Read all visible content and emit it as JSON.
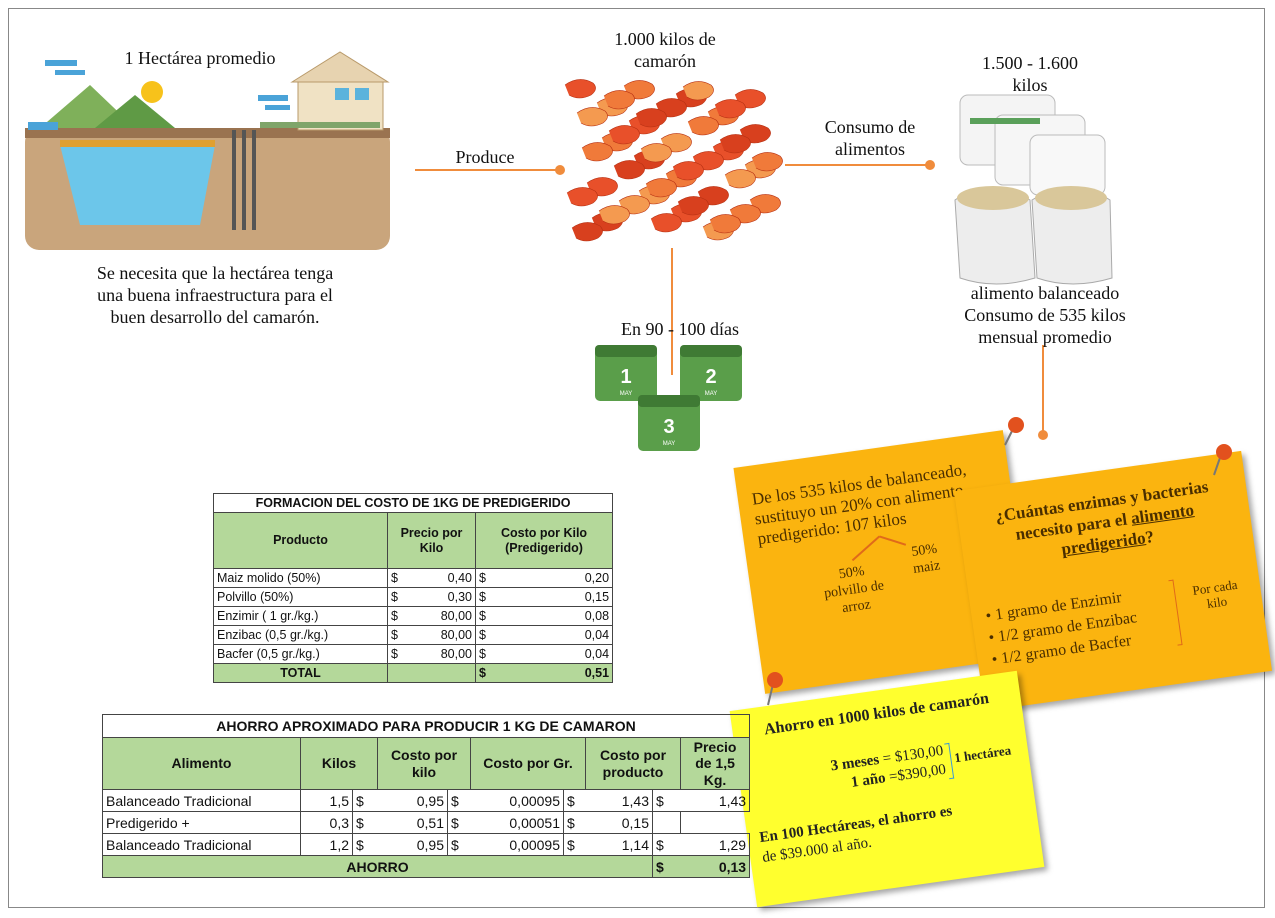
{
  "farm": {
    "title": "1 Hectárea promedio",
    "description": [
      "Se necesita que la hectárea tenga",
      "una buena infraestructura para el",
      "buen desarrollo del camarón."
    ]
  },
  "produce_label": "Produce",
  "shrimp": {
    "title": [
      "1.000 kilos de",
      "camarón"
    ],
    "duration": "En 90 - 100 días",
    "calendar_days": [
      "1",
      "2",
      "3"
    ],
    "calendar_month": "MAY"
  },
  "feed": {
    "link_label": [
      "Consumo de",
      "alimentos"
    ],
    "amount": [
      "1.500 - 1.600",
      "kilos"
    ],
    "description": [
      "alimento balanceado",
      "Consumo de 535 kilos",
      "mensual promedio"
    ]
  },
  "note_substitution": {
    "text": "De los 535 kilos de balanceado, sustituyo un 20% con alimento predigerido: 107 kilos",
    "split_a": [
      "50%",
      "polvillo de",
      "arroz"
    ],
    "split_b": [
      "50%",
      "maiz"
    ]
  },
  "note_enzymes": {
    "title_parts": [
      "¿Cuántas enzimas y bacterias necesito para el ",
      "alimento predigerido",
      "?"
    ],
    "items": [
      "1 gramo de  Enzimir",
      "1/2 gramo de Enzibac",
      "1/2 gramo de Bacfer"
    ],
    "per_unit": [
      "Por cada",
      "kilo"
    ]
  },
  "note_savings": {
    "title": "Ahorro en 1000 kilos de camarón",
    "lines": [
      {
        "period": "3 meses",
        "amount": " = $130,00"
      },
      {
        "period": "1 año",
        "amount": " =$390,00"
      }
    ],
    "scope": "1 hectárea",
    "conclusion_bold": "En 100 Hectáreas, el ahorro es",
    "conclusion": "de $39.000 al año."
  },
  "cost_table": {
    "title": "FORMACION DEL COSTO DE 1KG DE PREDIGERIDO",
    "headers": [
      "Producto",
      "Precio por Kilo",
      "Costo por Kilo (Predigerido)"
    ],
    "rows": [
      [
        "Maiz molido  (50%)",
        "$",
        "0,40",
        "$",
        "0,20"
      ],
      [
        "Polvillo (50%)",
        "$",
        "0,30",
        "$",
        "0,15"
      ],
      [
        "Enzimir ( 1 gr./kg.)",
        "$",
        "80,00",
        "$",
        "0,08"
      ],
      [
        "Enzibac (0,5 gr./kg.)",
        "$",
        "80,00",
        "$",
        "0,04"
      ],
      [
        "Bacfer (0,5 gr./kg.)",
        "$",
        "80,00",
        "$",
        "0,04"
      ]
    ],
    "total": [
      "TOTAL",
      "$",
      "0,51"
    ]
  },
  "savings_table": {
    "title": "AHORRO APROXIMADO PARA PRODUCIR 1 KG DE CAMARON",
    "headers": [
      "Alimento",
      "Kilos",
      "Costo por kilo",
      "Costo por Gr.",
      "Costo por producto",
      "Precio de 1,5 Kg."
    ],
    "rows": [
      [
        "Balanceado Tradicional",
        "1,5",
        "$",
        "0,95",
        "$",
        "0,00095",
        "$",
        "1,43",
        "$",
        "1,43"
      ],
      [
        "Predigerido   +",
        "0,3",
        "$",
        "0,51",
        "$",
        "0,00051",
        "$",
        "0,15"
      ],
      [
        "Balanceado Tradicional",
        "1,2",
        "$",
        "0,95",
        "$",
        "0,00095",
        "$",
        "1,14",
        "$",
        "1,29"
      ]
    ],
    "total": [
      "AHORRO",
      "$",
      "0,13"
    ]
  }
}
